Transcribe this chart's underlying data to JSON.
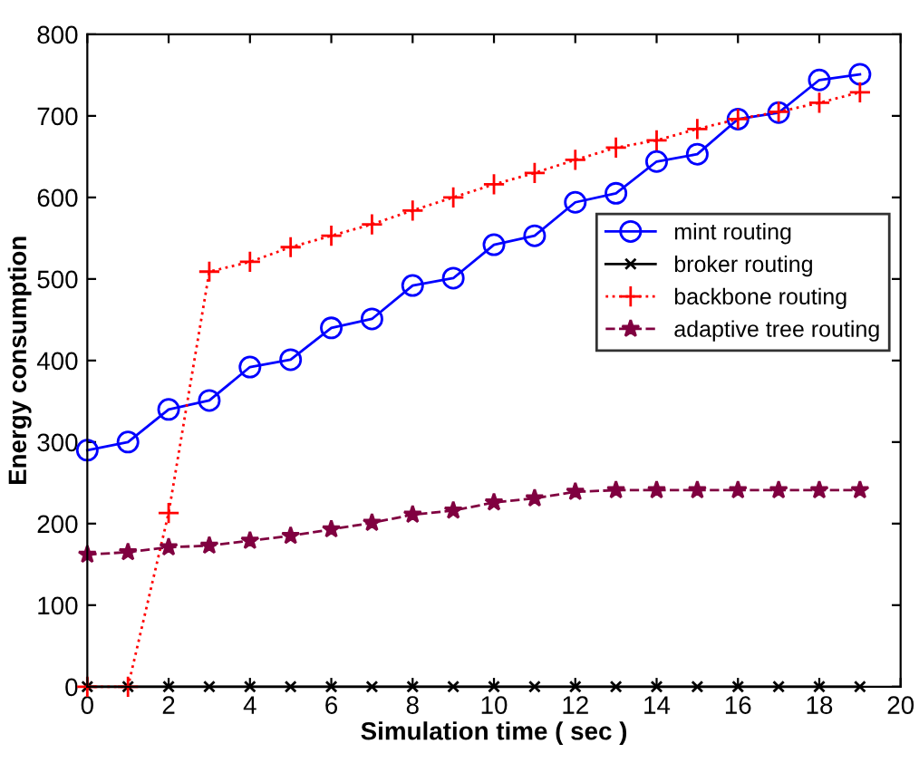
{
  "chart_data": {
    "type": "line",
    "xlabel": "Simulation time ( sec )",
    "ylabel": "Energy consumption",
    "x": [
      0,
      1,
      2,
      3,
      4,
      5,
      6,
      7,
      8,
      9,
      10,
      11,
      12,
      13,
      14,
      15,
      16,
      17,
      18,
      19
    ],
    "xlim": [
      0,
      20
    ],
    "xticks": [
      0,
      2,
      4,
      6,
      8,
      10,
      12,
      14,
      16,
      18,
      20
    ],
    "ylim": [
      0,
      800
    ],
    "yticks": [
      0,
      100,
      200,
      300,
      400,
      500,
      600,
      700,
      800
    ],
    "grid": false,
    "legend": "right",
    "series": [
      {
        "name": "mint routing",
        "color": "#0000ff",
        "marker": "circle",
        "line_style": "solid",
        "values": [
          290,
          300,
          340,
          351,
          392,
          401,
          440,
          451,
          492,
          501,
          542,
          553,
          594,
          605,
          644,
          653,
          696,
          704,
          744,
          751
        ]
      },
      {
        "name": "broker routing",
        "color": "#000000",
        "marker": "cross",
        "line_style": "solid",
        "values": [
          0,
          0,
          0,
          0,
          0,
          0,
          0,
          0,
          0,
          0,
          0,
          0,
          0,
          0,
          0,
          0,
          0,
          0,
          0,
          0
        ]
      },
      {
        "name": "backbone routing",
        "color": "#ff0000",
        "marker": "plus",
        "line_style": "dotted",
        "values": [
          0,
          0,
          213,
          509,
          521,
          539,
          553,
          567,
          584,
          600,
          616,
          630,
          646,
          661,
          670,
          684,
          696,
          705,
          716,
          729
        ]
      },
      {
        "name": "adaptive tree routing",
        "color": "#800040",
        "marker": "star",
        "line_style": "dashed",
        "values": [
          162,
          165,
          171,
          173,
          179,
          185,
          193,
          201,
          211,
          216,
          226,
          231,
          239,
          241,
          241,
          241,
          241,
          241,
          241,
          241
        ]
      }
    ]
  }
}
